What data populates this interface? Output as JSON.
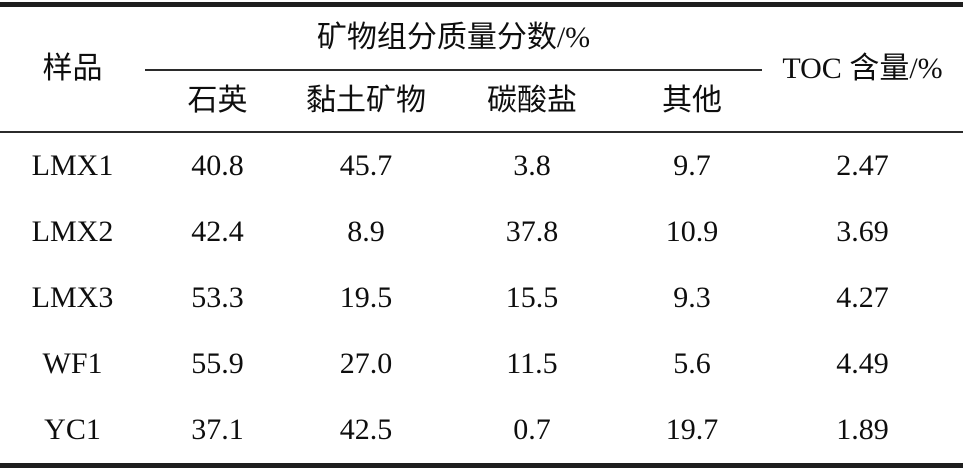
{
  "table": {
    "headers": {
      "sample": "样品",
      "mineral_group": "矿物组分质量分数/%",
      "toc": "TOC 含量/%",
      "sub": [
        "石英",
        "黏土矿物",
        "碳酸盐",
        "其他"
      ]
    },
    "rows": [
      {
        "sample": "LMX1",
        "values": [
          "40.8",
          "45.7",
          "3.8",
          "9.7",
          "2.47"
        ]
      },
      {
        "sample": "LMX2",
        "values": [
          "42.4",
          "8.9",
          "37.8",
          "10.9",
          "3.69"
        ]
      },
      {
        "sample": "LMX3",
        "values": [
          "53.3",
          "19.5",
          "15.5",
          "9.3",
          "4.27"
        ]
      },
      {
        "sample": "WF1",
        "values": [
          "55.9",
          "27.0",
          "11.5",
          "5.6",
          "4.49"
        ]
      },
      {
        "sample": "YC1",
        "values": [
          "37.1",
          "42.5",
          "0.7",
          "19.7",
          "1.89"
        ]
      }
    ]
  },
  "chart_data": {
    "type": "table",
    "column_group_header": "矿物组分质量分数/%",
    "columns": [
      "样品",
      "石英",
      "黏土矿物",
      "碳酸盐",
      "其他",
      "TOC 含量/%"
    ],
    "rows": [
      [
        "LMX1",
        40.8,
        45.7,
        3.8,
        9.7,
        2.47
      ],
      [
        "LMX2",
        42.4,
        8.9,
        37.8,
        10.9,
        3.69
      ],
      [
        "LMX3",
        53.3,
        19.5,
        15.5,
        9.3,
        4.27
      ],
      [
        "WF1",
        55.9,
        27.0,
        11.5,
        5.6,
        4.49
      ],
      [
        "YC1",
        37.1,
        42.5,
        0.7,
        19.7,
        1.89
      ]
    ]
  }
}
